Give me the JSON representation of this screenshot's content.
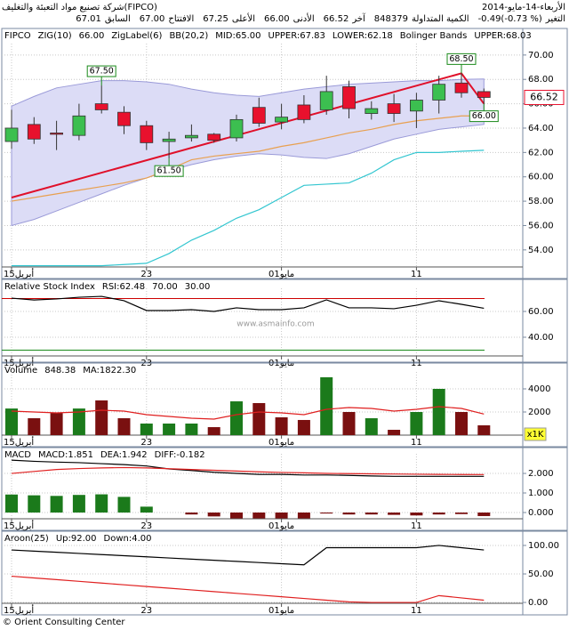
{
  "header": {
    "company": "شركة تصنيع مواد التعبئة والتغليف(FIPCO)",
    "date": "الأربعاء-14-مايو-2014",
    "quote": [
      {
        "label": "التغير",
        "value": "-0.49(-0.73 %)"
      },
      {
        "label": "الكمية المتداولة",
        "value": "848379"
      },
      {
        "label": "آخر",
        "value": "66.52"
      },
      {
        "label": "الأدنى",
        "value": "66.00"
      },
      {
        "label": "الأعلى",
        "value": "67.25"
      },
      {
        "label": "الافتتاح",
        "value": "67.00"
      },
      {
        "label": "السابق",
        "value": "67.01"
      }
    ]
  },
  "watermark": "www.asmainfo.com",
  "footer": "© Orient Consulting Center",
  "chart_data": [
    {
      "type": "candlestick",
      "categories": [
        "15أبريل",
        null,
        null,
        null,
        null,
        null,
        "23",
        null,
        null,
        null,
        null,
        null,
        "01مايو",
        null,
        null,
        null,
        null,
        null,
        "11",
        null,
        null,
        null
      ],
      "legend": [
        {
          "text": "FIPCO",
          "color": "#000080"
        },
        {
          "text": "ZIG(10)",
          "color": "#e0102a"
        },
        {
          "text": "66.00",
          "color": "#e0102a"
        },
        {
          "text": "ZigLabel(6)",
          "color": "#1a8a1a"
        },
        {
          "text": "BB(20,2)",
          "color": "#e08a20"
        },
        {
          "text": "MID:65.00",
          "color": "#e08a20"
        },
        {
          "text": "UPPER:67.83",
          "color": "#a0a0a0"
        },
        {
          "text": "LOWER:62.18",
          "color": "#20a0c0"
        },
        {
          "text": "Bolinger Bands",
          "color": "#5a5ab0"
        },
        {
          "text": "UPPER:68.03",
          "color": "#5a5ab0"
        }
      ],
      "ylim": [
        52.6,
        70.5
      ],
      "yticks": [
        {
          "value": 54,
          "label": "54.00"
        },
        {
          "value": 56,
          "label": "56.00"
        },
        {
          "value": 58,
          "label": "58.00"
        },
        {
          "value": 60,
          "label": "60.00"
        },
        {
          "value": 62,
          "label": "62.00"
        },
        {
          "value": 64,
          "label": "64.00"
        },
        {
          "value": 66,
          "label": "66.00"
        },
        {
          "value": 68,
          "label": "68.00"
        },
        {
          "value": 70,
          "label": "70.00"
        }
      ],
      "grid": true,
      "series": [
        {
          "type": "band",
          "color": "#9a9ad8",
          "fill": "#dcdcf6",
          "upper": [
            65.8,
            66.6,
            67.3,
            67.6,
            67.9,
            67.9,
            67.8,
            67.6,
            67.2,
            66.9,
            66.7,
            66.6,
            66.9,
            67.2,
            67.4,
            67.6,
            67.7,
            67.8,
            67.9,
            67.9,
            68.0,
            68.03
          ],
          "lower": [
            56.0,
            56.5,
            57.2,
            57.9,
            58.6,
            59.3,
            59.9,
            60.5,
            61.0,
            61.4,
            61.7,
            61.9,
            61.8,
            61.6,
            61.5,
            61.9,
            62.5,
            63.1,
            63.5,
            63.9,
            64.1,
            64.3
          ]
        },
        {
          "type": "line",
          "color": "#e8a050",
          "values": [
            58.0,
            58.3,
            58.6,
            58.9,
            59.2,
            59.5,
            59.9,
            60.6,
            61.4,
            61.7,
            61.9,
            62.1,
            62.5,
            62.8,
            63.2,
            63.6,
            63.9,
            64.3,
            64.6,
            64.8,
            65.0,
            65.0
          ]
        },
        {
          "type": "line",
          "color": "#33c6d0",
          "values": [
            52.7,
            52.7,
            52.7,
            52.7,
            52.7,
            52.8,
            52.9,
            53.7,
            54.8,
            55.6,
            56.6,
            57.3,
            58.3,
            59.3,
            59.4,
            59.5,
            60.3,
            61.4,
            62.0,
            62.0,
            62.1,
            62.18
          ]
        },
        {
          "type": "zigzag",
          "color": "#e0102a",
          "points": [
            {
              "index": 0,
              "value": 58.3
            },
            {
              "index": 20,
              "value": 68.5
            },
            {
              "index": 21,
              "value": 66
            }
          ]
        },
        {
          "type": "candlestick",
          "up_color": "#3cbf50",
          "down_color": "#e8112d",
          "open": [
            62.9,
            64.3,
            63.6,
            63.4,
            66.0,
            65.3,
            64.2,
            62.9,
            63.2,
            63.5,
            63.2,
            65.7,
            64.5,
            65.9,
            65.5,
            67.4,
            65.2,
            66.0,
            65.4,
            66.3,
            67.7,
            67.0
          ],
          "high": [
            65.5,
            64.9,
            64.6,
            66.0,
            67.5,
            65.8,
            64.6,
            63.7,
            64.3,
            63.6,
            65.1,
            66.5,
            66.0,
            66.7,
            68.3,
            67.9,
            66.2,
            66.8,
            66.9,
            68.3,
            68.5,
            67.25
          ],
          "low": [
            62.3,
            62.7,
            62.2,
            63.0,
            65.2,
            63.5,
            62.2,
            61.5,
            62.9,
            62.8,
            62.9,
            64.1,
            63.9,
            64.4,
            65.1,
            64.8,
            64.7,
            64.5,
            64.0,
            65.2,
            66.5,
            66.0
          ],
          "close": [
            64.0,
            63.1,
            63.5,
            65.0,
            65.5,
            64.2,
            62.8,
            63.1,
            63.4,
            63.0,
            64.7,
            64.4,
            64.9,
            64.7,
            67.0,
            65.6,
            65.6,
            65.2,
            66.3,
            67.6,
            66.9,
            66.52
          ]
        }
      ],
      "annotations": [
        {
          "index": 4,
          "value": 67.5,
          "label": "67.50"
        },
        {
          "index": 7,
          "value": 61.5,
          "label": "61.50"
        },
        {
          "index": 20,
          "value": 68.5,
          "label": "68.50"
        },
        {
          "index": 21,
          "value": 66,
          "label": "66.00"
        }
      ],
      "last_price": {
        "value": 66.52,
        "label": "66.52",
        "color": "#e8112d"
      }
    },
    {
      "type": "line",
      "categories": [
        "15أبريل",
        null,
        null,
        null,
        null,
        null,
        "23",
        null,
        null,
        null,
        null,
        null,
        "01مايو",
        null,
        null,
        null,
        null,
        null,
        "11",
        null,
        null,
        null
      ],
      "legend": [
        {
          "text": "Relative Stock Index",
          "color": "#000000"
        },
        {
          "text": "RSI:62.48",
          "color": "#000000"
        },
        {
          "text": "70.00",
          "color": "#cc0000"
        },
        {
          "text": "30.00",
          "color": "#1a8a1a"
        }
      ],
      "ylim": [
        25.5,
        73.8
      ],
      "yticks": [
        {
          "value": 40,
          "label": "40.00"
        },
        {
          "value": 60,
          "label": "60.00"
        }
      ],
      "grid": true,
      "levels": [
        {
          "value": 70,
          "color": "#cc0000"
        },
        {
          "value": 30,
          "color": "#1a8a1a"
        }
      ],
      "series": [
        {
          "type": "line",
          "color": "#000000",
          "values": [
            70.3,
            68.9,
            69.7,
            71.0,
            71.7,
            68.3,
            60.7,
            60.7,
            61.4,
            60.0,
            62.8,
            61.4,
            61.4,
            62.8,
            69.0,
            62.8,
            62.8,
            62.1,
            64.8,
            68.3,
            65.5,
            62.48
          ]
        }
      ]
    },
    {
      "type": "bar",
      "categories": [
        "15أبريل",
        null,
        null,
        null,
        null,
        null,
        "23",
        null,
        null,
        null,
        null,
        null,
        "01مايو",
        null,
        null,
        null,
        null,
        null,
        "11",
        null,
        null,
        null
      ],
      "legend": [
        {
          "text": "Volume",
          "color": "#000000"
        },
        {
          "text": "848.38",
          "color": "#000000"
        },
        {
          "text": "MA:1822.30",
          "color": "#cc0000"
        }
      ],
      "unit_label": "x1K",
      "ylim": [
        0,
        5000
      ],
      "yticks": [
        2000,
        4000
      ],
      "grid": true,
      "series": [
        {
          "type": "bar",
          "colors": [
            "#1b7a1b",
            "#7a1010",
            "#7a1010",
            "#1b7a1b",
            "#7a1010",
            "#7a1010",
            "#1b7a1b",
            "#1b7a1b",
            "#1b7a1b",
            "#7a1010",
            "#1b7a1b",
            "#7a1010",
            "#7a1010",
            "#7a1010",
            "#1b7a1b",
            "#7a1010",
            "#1b7a1b",
            "#7a1010",
            "#1b7a1b",
            "#1b7a1b",
            "#7a1010",
            "#7a1010"
          ],
          "values": [
            2300,
            1460,
            1920,
            2300,
            3000,
            1460,
            1000,
            1000,
            1000,
            690,
            2920,
            2770,
            1540,
            1310,
            5000,
            2000,
            1460,
            460,
            2000,
            4000,
            2000,
            848.38
          ]
        },
        {
          "type": "line",
          "color": "#e02020",
          "values": [
            2077,
            2000,
            1923,
            2000,
            2154,
            2077,
            1769,
            1615,
            1462,
            1385,
            1769,
            2000,
            1923,
            1769,
            2231,
            2385,
            2308,
            2077,
            2231,
            2462,
            2308,
            1822.3
          ]
        }
      ]
    },
    {
      "type": "bar",
      "categories": [
        "15أبريل",
        null,
        null,
        null,
        null,
        null,
        "23",
        null,
        null,
        null,
        null,
        null,
        "01مايو",
        null,
        null,
        null,
        null,
        null,
        "11",
        null,
        null,
        null
      ],
      "legend": [
        {
          "text": "MACD",
          "color": "#000000"
        },
        {
          "text": "MACD:1.851",
          "color": "#000000"
        },
        {
          "text": "DEA:1.942",
          "color": "#cc0000"
        },
        {
          "text": "DIFF:-0.182",
          "color": "#1a8a1a"
        }
      ],
      "ylim": [
        -0.32,
        2.73
      ],
      "yticks": [
        {
          "value": 0,
          "label": "0.000"
        },
        {
          "value": 1,
          "label": "1.000"
        },
        {
          "value": 2,
          "label": "2.000"
        }
      ],
      "grid": true,
      "series": [
        {
          "type": "bar",
          "up_color": "#1b7a1b",
          "down_color": "#7a1010",
          "values": [
            0.92,
            0.88,
            0.85,
            0.9,
            0.93,
            0.8,
            0.3,
            0,
            -0.1,
            -0.2,
            -0.3,
            -0.3,
            -0.3,
            -0.3,
            -0.05,
            -0.1,
            -0.1,
            -0.12,
            -0.15,
            -0.1,
            -0.08,
            -0.182
          ]
        },
        {
          "type": "line",
          "color": "#000000",
          "values": [
            2.68,
            2.62,
            2.58,
            2.55,
            2.5,
            2.45,
            2.38,
            2.23,
            2.15,
            2.06,
            2.0,
            1.95,
            1.95,
            1.92,
            1.92,
            1.9,
            1.87,
            1.85,
            1.85,
            1.85,
            1.85,
            1.851
          ]
        },
        {
          "type": "line",
          "color": "#e02020",
          "values": [
            2.0,
            2.1,
            2.2,
            2.25,
            2.28,
            2.3,
            2.28,
            2.24,
            2.2,
            2.16,
            2.12,
            2.08,
            2.05,
            2.03,
            2.0,
            1.99,
            1.98,
            1.97,
            1.96,
            1.95,
            1.945,
            1.942
          ]
        }
      ]
    },
    {
      "type": "line",
      "categories": [
        "15أبريل",
        null,
        null,
        null,
        null,
        null,
        "23",
        null,
        null,
        null,
        null,
        null,
        "01مايو",
        null,
        null,
        null,
        null,
        null,
        "11",
        null,
        null,
        null
      ],
      "legend": [
        {
          "text": "Aroon(25)",
          "color": "#000000"
        },
        {
          "text": "Up:92.00",
          "color": "#000000"
        },
        {
          "text": "Down:4.00",
          "color": "#cc0000"
        }
      ],
      "ylim": [
        -1.5,
        101.5
      ],
      "yticks": [
        {
          "value": 0,
          "label": "0.00"
        },
        {
          "value": 50,
          "label": "50.00"
        },
        {
          "value": 100,
          "label": "100.00"
        }
      ],
      "grid": true,
      "series": [
        {
          "type": "line",
          "color": "#000000",
          "values": [
            92,
            90,
            88,
            86,
            84,
            82,
            80,
            78,
            76,
            74,
            72,
            70,
            68,
            66,
            96,
            96,
            96,
            96,
            96,
            100,
            96,
            92
          ]
        },
        {
          "type": "line",
          "color": "#e02020",
          "values": [
            46,
            43,
            40,
            37,
            34,
            31,
            28,
            25,
            22,
            19,
            16,
            13,
            10,
            7,
            4,
            1,
            0,
            0,
            0,
            12,
            8,
            4
          ]
        }
      ]
    }
  ]
}
